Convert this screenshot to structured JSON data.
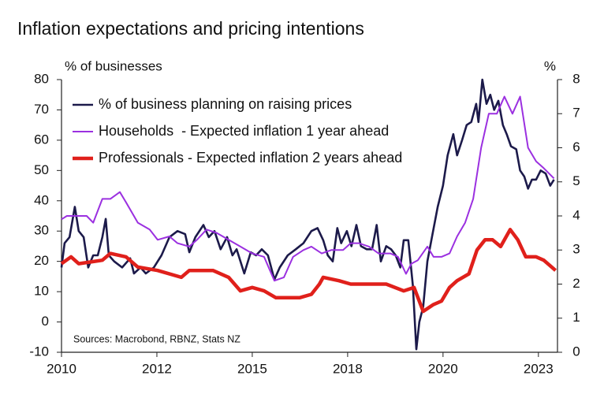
{
  "chart_data": {
    "type": "line",
    "title": "Inflation expectations and pricing intentions",
    "ylabel": "% of businesses",
    "y2label": "%",
    "annotation": "Sources: Macrobond, RBNZ, Stats NZ",
    "xlim": [
      2010,
      2023
    ],
    "xticks": [
      2010,
      {
        "value": 2012.5,
        "label": "2012"
      },
      2015,
      {
        "value": 2017.5,
        "label": "2018"
      },
      2020,
      {
        "value": 2022.5,
        "label": "2023"
      }
    ],
    "ylim": [
      -10,
      80
    ],
    "yticks": [
      -10,
      0,
      10,
      20,
      30,
      40,
      50,
      60,
      70,
      80
    ],
    "y2lim": [
      0,
      8
    ],
    "y2ticks": [
      0,
      1,
      2,
      3,
      4,
      5,
      6,
      7,
      8
    ],
    "legend": "upper left",
    "series": [
      {
        "name": "% of business planning on raising prices",
        "color": "#1c1a4a",
        "axis": "y",
        "x": [
          2010.0,
          2010.08,
          2010.21,
          2010.35,
          2010.45,
          2010.58,
          2010.7,
          2010.83,
          2010.95,
          2011.07,
          2011.16,
          2011.24,
          2011.38,
          2011.59,
          2011.8,
          2011.9,
          2012.07,
          2012.21,
          2012.42,
          2012.62,
          2012.83,
          2013.04,
          2013.24,
          2013.35,
          2013.51,
          2013.72,
          2013.86,
          2014.01,
          2014.17,
          2014.34,
          2014.48,
          2014.59,
          2014.79,
          2014.96,
          2015.1,
          2015.25,
          2015.41,
          2015.58,
          2015.72,
          2015.93,
          2016.14,
          2016.34,
          2016.55,
          2016.71,
          2016.86,
          2016.98,
          2017.11,
          2017.23,
          2017.33,
          2017.48,
          2017.6,
          2017.73,
          2017.85,
          2018.0,
          2018.14,
          2018.26,
          2018.37,
          2018.51,
          2018.64,
          2018.76,
          2018.88,
          2018.97,
          2019.09,
          2019.21,
          2019.3,
          2019.38,
          2019.48,
          2019.59,
          2019.71,
          2019.86,
          2020.0,
          2020.12,
          2020.27,
          2020.37,
          2020.5,
          2020.62,
          2020.74,
          2020.87,
          2020.93,
          2021.03,
          2021.14,
          2021.24,
          2021.34,
          2021.45,
          2021.57,
          2021.67,
          2021.78,
          2021.92,
          2022.02,
          2022.13,
          2022.23,
          2022.33,
          2022.44,
          2022.56,
          2022.69,
          2022.81,
          2022.91
        ],
        "values": [
          18,
          26,
          28,
          38,
          30,
          28,
          18,
          22,
          22,
          28,
          34,
          22,
          20,
          18,
          21,
          16,
          18,
          16,
          18,
          22,
          28,
          30,
          29,
          23,
          28,
          32,
          28,
          30,
          24,
          28,
          22,
          24,
          16,
          23,
          22,
          24,
          22,
          14,
          18,
          22,
          24,
          26,
          30,
          31,
          27,
          22,
          20,
          31,
          26,
          30,
          25,
          32,
          25,
          24,
          24,
          32,
          20,
          25,
          24,
          22,
          18,
          27,
          27,
          12,
          -9,
          0,
          5,
          20,
          28,
          38,
          45,
          55,
          62,
          55,
          60,
          65,
          66,
          72,
          66,
          80,
          72,
          75,
          70,
          73,
          65,
          62,
          58,
          57,
          50,
          48,
          44,
          47,
          47,
          50,
          49,
          45,
          47
        ]
      },
      {
        "name": "Households  - Expected inflation 1 year ahead",
        "color": "#9b30e0",
        "axis": "y2",
        "x": [
          2010.0,
          2010.14,
          2010.66,
          2010.83,
          2011.07,
          2011.28,
          2011.53,
          2011.69,
          2012.0,
          2012.31,
          2012.52,
          2012.83,
          2013.04,
          2013.35,
          2013.55,
          2013.8,
          2014.07,
          2014.38,
          2014.69,
          2015.0,
          2015.31,
          2015.58,
          2015.83,
          2016.07,
          2016.34,
          2016.55,
          2016.82,
          2017.07,
          2017.38,
          2017.58,
          2017.79,
          2018.06,
          2018.31,
          2018.62,
          2018.82,
          2019.03,
          2019.17,
          2019.34,
          2019.59,
          2019.75,
          2019.96,
          2020.17,
          2020.37,
          2020.58,
          2020.79,
          2021.0,
          2021.2,
          2021.41,
          2021.61,
          2021.82,
          2022.02,
          2022.23,
          2022.44,
          2022.64,
          2022.91
        ],
        "values": [
          3.9,
          4.0,
          4.0,
          3.8,
          4.5,
          4.5,
          4.7,
          4.4,
          3.8,
          3.6,
          3.3,
          3.4,
          3.2,
          3.1,
          3.3,
          3.6,
          3.5,
          3.3,
          3.1,
          2.9,
          2.8,
          2.1,
          2.2,
          2.8,
          3.0,
          3.1,
          2.9,
          3.0,
          3.0,
          3.2,
          3.2,
          3.1,
          2.9,
          2.9,
          2.8,
          2.3,
          2.6,
          2.7,
          3.1,
          2.8,
          2.8,
          2.9,
          3.4,
          3.8,
          4.5,
          6.0,
          7.0,
          7.0,
          7.5,
          7.0,
          7.5,
          6.0,
          5.6,
          5.4,
          5.1
        ]
      },
      {
        "name": "Professionals - Expected inflation 2 years ahead",
        "color": "#e0201b",
        "axis": "y2",
        "x": [
          2010.0,
          2010.25,
          2010.45,
          2011.07,
          2011.28,
          2011.69,
          2012.0,
          2012.52,
          2013.14,
          2013.35,
          2013.97,
          2014.38,
          2014.69,
          2015.0,
          2015.31,
          2015.62,
          2016.24,
          2016.55,
          2016.76,
          2016.86,
          2017.27,
          2017.58,
          2017.89,
          2018.51,
          2018.97,
          2019.24,
          2019.48,
          2019.75,
          2019.96,
          2020.17,
          2020.37,
          2020.68,
          2020.89,
          2021.1,
          2021.3,
          2021.51,
          2021.76,
          2021.96,
          2022.17,
          2022.44,
          2022.64,
          2022.95
        ],
        "values": [
          2.6,
          2.8,
          2.6,
          2.7,
          2.9,
          2.8,
          2.5,
          2.4,
          2.2,
          2.4,
          2.4,
          2.2,
          1.8,
          1.9,
          1.8,
          1.6,
          1.6,
          1.7,
          2.0,
          2.2,
          2.1,
          2.0,
          2.0,
          2.0,
          1.8,
          1.9,
          1.2,
          1.4,
          1.5,
          1.9,
          2.1,
          2.3,
          3.0,
          3.3,
          3.3,
          3.1,
          3.6,
          3.3,
          2.8,
          2.8,
          2.7,
          2.4
        ]
      }
    ]
  }
}
